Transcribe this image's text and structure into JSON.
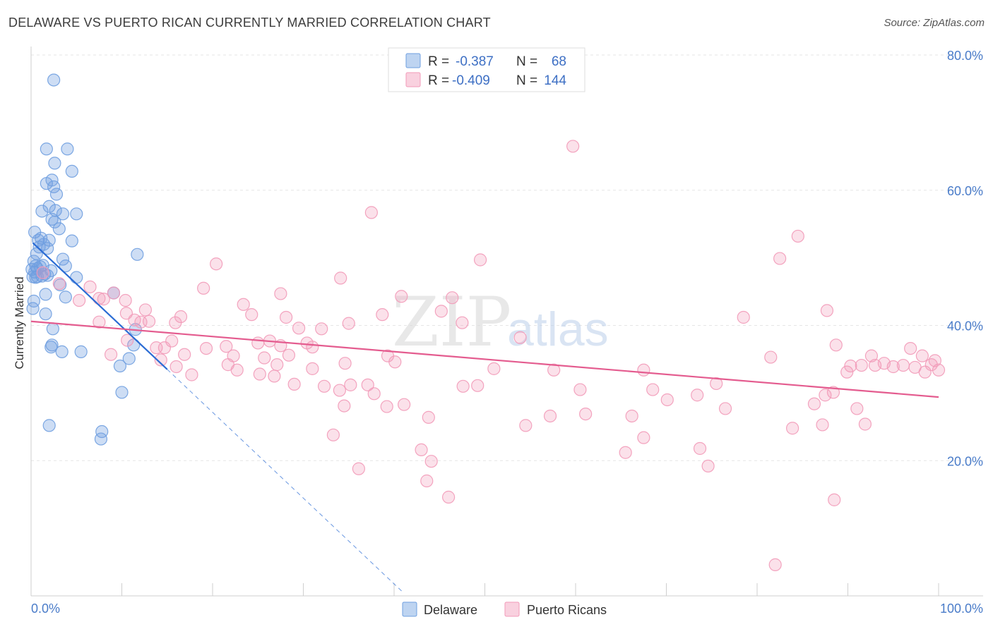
{
  "title": "DELAWARE VS PUERTO RICAN CURRENTLY MARRIED CORRELATION CHART",
  "source": "Source: ZipAtlas.com",
  "watermark": {
    "zip": "ZIP",
    "atlas": "atlas"
  },
  "chart_data": {
    "type": "scatter",
    "ylabel": "Currently Married",
    "xlim": [
      0,
      100
    ],
    "ylim": [
      0,
      80
    ],
    "y_ticks": [
      {
        "value": 20,
        "label": "20.0%"
      },
      {
        "value": 40,
        "label": "40.0%"
      },
      {
        "value": 60,
        "label": "60.0%"
      },
      {
        "value": 80,
        "label": "80.0%"
      }
    ],
    "x_tick_labels": {
      "min": "0.0%",
      "max": "100.0%"
    },
    "grid": true,
    "legend_position": "top-center",
    "series": [
      {
        "name": "Delaware",
        "color": "#6f9fe0",
        "line_color": "#2b6cd4",
        "stats": {
          "r_label": "R =",
          "r": "-0.387",
          "n_label": "N =",
          "n": "68"
        },
        "trend": {
          "x0": 0.2,
          "y0": 52.2,
          "x1": 15,
          "y1": 33.5,
          "dash_x1": 41,
          "dash_y1": 0.5
        },
        "points": [
          [
            2.5,
            76.3
          ],
          [
            1.7,
            66.1
          ],
          [
            4,
            66.1
          ],
          [
            2.6,
            64
          ],
          [
            4.5,
            62.8
          ],
          [
            2.3,
            61.5
          ],
          [
            1.7,
            61
          ],
          [
            2.5,
            60.5
          ],
          [
            2.8,
            59.4
          ],
          [
            2,
            57.6
          ],
          [
            1.2,
            56.9
          ],
          [
            2.7,
            57
          ],
          [
            3.5,
            56.5
          ],
          [
            5,
            56.5
          ],
          [
            2.3,
            55.7
          ],
          [
            2.6,
            55.3
          ],
          [
            3.1,
            54.3
          ],
          [
            0.4,
            53.8
          ],
          [
            1.1,
            52.9
          ],
          [
            0.8,
            52.6
          ],
          [
            2,
            52.6
          ],
          [
            4.5,
            52.5
          ],
          [
            1.4,
            52
          ],
          [
            0.9,
            51.6
          ],
          [
            1.8,
            51.4
          ],
          [
            11.7,
            50.5
          ],
          [
            0.6,
            50.6
          ],
          [
            3.5,
            49.8
          ],
          [
            0.3,
            49.5
          ],
          [
            1.3,
            48.9
          ],
          [
            0.5,
            48.8
          ],
          [
            3.8,
            48.8
          ],
          [
            1,
            48.7
          ],
          [
            0.7,
            48.4
          ],
          [
            0.1,
            48.3
          ],
          [
            2.2,
            48.1
          ],
          [
            0.4,
            47.9
          ],
          [
            1.5,
            47.6
          ],
          [
            1.8,
            47.4
          ],
          [
            0.2,
            47.2
          ],
          [
            0.5,
            47.1
          ],
          [
            0.7,
            47.2
          ],
          [
            1.2,
            47.3
          ],
          [
            5,
            47.1
          ],
          [
            3.2,
            46
          ],
          [
            9.1,
            44.8
          ],
          [
            1.6,
            44.6
          ],
          [
            3.8,
            44.2
          ],
          [
            0.3,
            43.6
          ],
          [
            0.2,
            42.5
          ],
          [
            1.6,
            41.7
          ],
          [
            11.5,
            39.4
          ],
          [
            2.4,
            39.5
          ],
          [
            2.3,
            37.1
          ],
          [
            2.2,
            36.8
          ],
          [
            11.3,
            37.1
          ],
          [
            3.4,
            36.1
          ],
          [
            5.5,
            36.1
          ],
          [
            10.8,
            35.1
          ],
          [
            9.8,
            34
          ],
          [
            10,
            30.1
          ],
          [
            2,
            25.2
          ],
          [
            7.8,
            24.3
          ],
          [
            7.7,
            23.2
          ]
        ]
      },
      {
        "name": "Puerto Ricans",
        "color": "#f29ab8",
        "line_color": "#e45c8f",
        "stats": {
          "r_label": "R =",
          "r": "-0.409",
          "n_label": "N =",
          "n": "144"
        },
        "trend": {
          "x0": 0,
          "y0": 40.6,
          "x1": 100,
          "y1": 29.4
        },
        "points": [
          [
            59.7,
            66.5
          ],
          [
            37.5,
            56.7
          ],
          [
            84.5,
            53.2
          ],
          [
            49.5,
            49.7
          ],
          [
            82.5,
            49.9
          ],
          [
            20.4,
            49.1
          ],
          [
            34.1,
            47
          ],
          [
            1.3,
            47.8
          ],
          [
            3.1,
            46.2
          ],
          [
            6.5,
            45.7
          ],
          [
            19,
            45.5
          ],
          [
            9.1,
            44.8
          ],
          [
            27.5,
            44.7
          ],
          [
            40.8,
            44.3
          ],
          [
            46.4,
            44.1
          ],
          [
            7.5,
            44
          ],
          [
            5.3,
            43.7
          ],
          [
            8,
            43.9
          ],
          [
            10.4,
            43.7
          ],
          [
            23.4,
            43.1
          ],
          [
            12.6,
            42.3
          ],
          [
            45.2,
            42.1
          ],
          [
            38.7,
            41.6
          ],
          [
            16.5,
            41.3
          ],
          [
            28.1,
            41.2
          ],
          [
            24.3,
            41.6
          ],
          [
            78.5,
            41.2
          ],
          [
            87.7,
            42.2
          ],
          [
            10.5,
            41.8
          ],
          [
            11.4,
            40.8
          ],
          [
            13,
            40.6
          ],
          [
            12.1,
            40.5
          ],
          [
            7.5,
            40.5
          ],
          [
            15.9,
            40.4
          ],
          [
            35,
            40.3
          ],
          [
            47.5,
            40.4
          ],
          [
            29.5,
            39.6
          ],
          [
            32,
            39.5
          ],
          [
            53.9,
            38.2
          ],
          [
            15.5,
            37.7
          ],
          [
            10.6,
            37.8
          ],
          [
            19.3,
            36.6
          ],
          [
            21.5,
            36.9
          ],
          [
            25,
            37.4
          ],
          [
            26.3,
            37.7
          ],
          [
            27.5,
            37
          ],
          [
            30.4,
            37.4
          ],
          [
            31,
            36.8
          ],
          [
            88.7,
            37.1
          ],
          [
            96.9,
            36.6
          ],
          [
            13.8,
            36.7
          ],
          [
            14.7,
            36.7
          ],
          [
            8.8,
            35.7
          ],
          [
            16.9,
            35.7
          ],
          [
            22.3,
            35.5
          ],
          [
            25.7,
            35.2
          ],
          [
            28.4,
            35.6
          ],
          [
            39.3,
            35.5
          ],
          [
            81.5,
            35.3
          ],
          [
            92.6,
            35.5
          ],
          [
            98.2,
            35.5
          ],
          [
            14.3,
            34.9
          ],
          [
            21.7,
            34.2
          ],
          [
            27.1,
            34.2
          ],
          [
            34.6,
            34.4
          ],
          [
            40.1,
            34.6
          ],
          [
            90.3,
            34
          ],
          [
            91.5,
            34.1
          ],
          [
            93,
            34.1
          ],
          [
            94,
            34.4
          ],
          [
            96.1,
            34.1
          ],
          [
            97.4,
            33.8
          ],
          [
            99.2,
            34.2
          ],
          [
            99.6,
            34.8
          ],
          [
            100,
            33.4
          ],
          [
            16,
            33.9
          ],
          [
            22.7,
            33.4
          ],
          [
            25.2,
            32.8
          ],
          [
            31,
            33.6
          ],
          [
            51,
            33.6
          ],
          [
            57.6,
            33.4
          ],
          [
            67.5,
            33.4
          ],
          [
            89.9,
            33.1
          ],
          [
            95,
            33.9
          ],
          [
            98.5,
            33.1
          ],
          [
            17.7,
            32.7
          ],
          [
            26.8,
            32.5
          ],
          [
            29,
            31.3
          ],
          [
            32.3,
            31
          ],
          [
            35.2,
            31.2
          ],
          [
            37.1,
            31.2
          ],
          [
            47.6,
            31
          ],
          [
            49.2,
            31.1
          ],
          [
            60.5,
            30.5
          ],
          [
            68.5,
            30.5
          ],
          [
            75.5,
            31.4
          ],
          [
            34,
            30.4
          ],
          [
            37.8,
            29.9
          ],
          [
            70.1,
            29
          ],
          [
            73.4,
            29.7
          ],
          [
            87.5,
            29.7
          ],
          [
            88.4,
            30.1
          ],
          [
            86.3,
            28.4
          ],
          [
            34.5,
            28.1
          ],
          [
            39.2,
            28
          ],
          [
            41.1,
            28.3
          ],
          [
            76.5,
            27.7
          ],
          [
            91,
            27.7
          ],
          [
            43.8,
            26.4
          ],
          [
            54.5,
            25.2
          ],
          [
            57.2,
            26.6
          ],
          [
            61.1,
            26.9
          ],
          [
            66.2,
            26.6
          ],
          [
            83.9,
            24.8
          ],
          [
            87.2,
            25.3
          ],
          [
            91.9,
            25.4
          ],
          [
            33.3,
            23.8
          ],
          [
            67.5,
            23.4
          ],
          [
            73.7,
            21.8
          ],
          [
            43,
            21.6
          ],
          [
            65.5,
            21.2
          ],
          [
            44.1,
            19.9
          ],
          [
            74.6,
            19.2
          ],
          [
            36.1,
            18.8
          ],
          [
            43.6,
            17
          ],
          [
            46,
            14.6
          ],
          [
            88.5,
            14.2
          ],
          [
            82,
            4.6
          ]
        ]
      }
    ]
  }
}
